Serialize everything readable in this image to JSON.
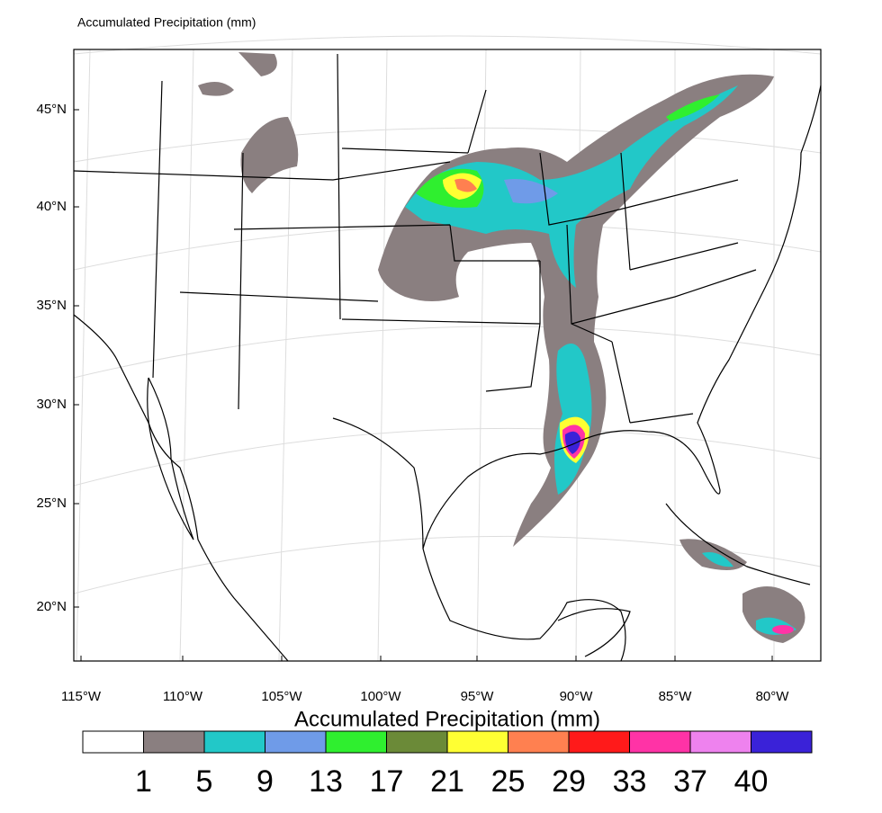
{
  "title": "Accumulated Precipitation   (mm)",
  "map": {
    "lat_labels": [
      "45°N",
      "40°N",
      "35°N",
      "30°N",
      "25°N",
      "20°N"
    ],
    "lon_labels": [
      "115°W",
      "110°W",
      "105°W",
      "100°W",
      "95°W",
      "90°W",
      "85°W",
      "80°W"
    ]
  },
  "colorbar": {
    "title": "Accumulated Precipitation  (mm)",
    "colors": [
      "#ffffff",
      "#8a7f80",
      "#22c8c8",
      "#6f9be8",
      "#2fef2f",
      "#6b8a38",
      "#ffff33",
      "#ff8050",
      "#ff1a1a",
      "#ff33a6",
      "#ee82ee",
      "#3a22d8"
    ],
    "levels": [
      1,
      5,
      9,
      13,
      17,
      21,
      25,
      29,
      33,
      37,
      40
    ]
  }
}
